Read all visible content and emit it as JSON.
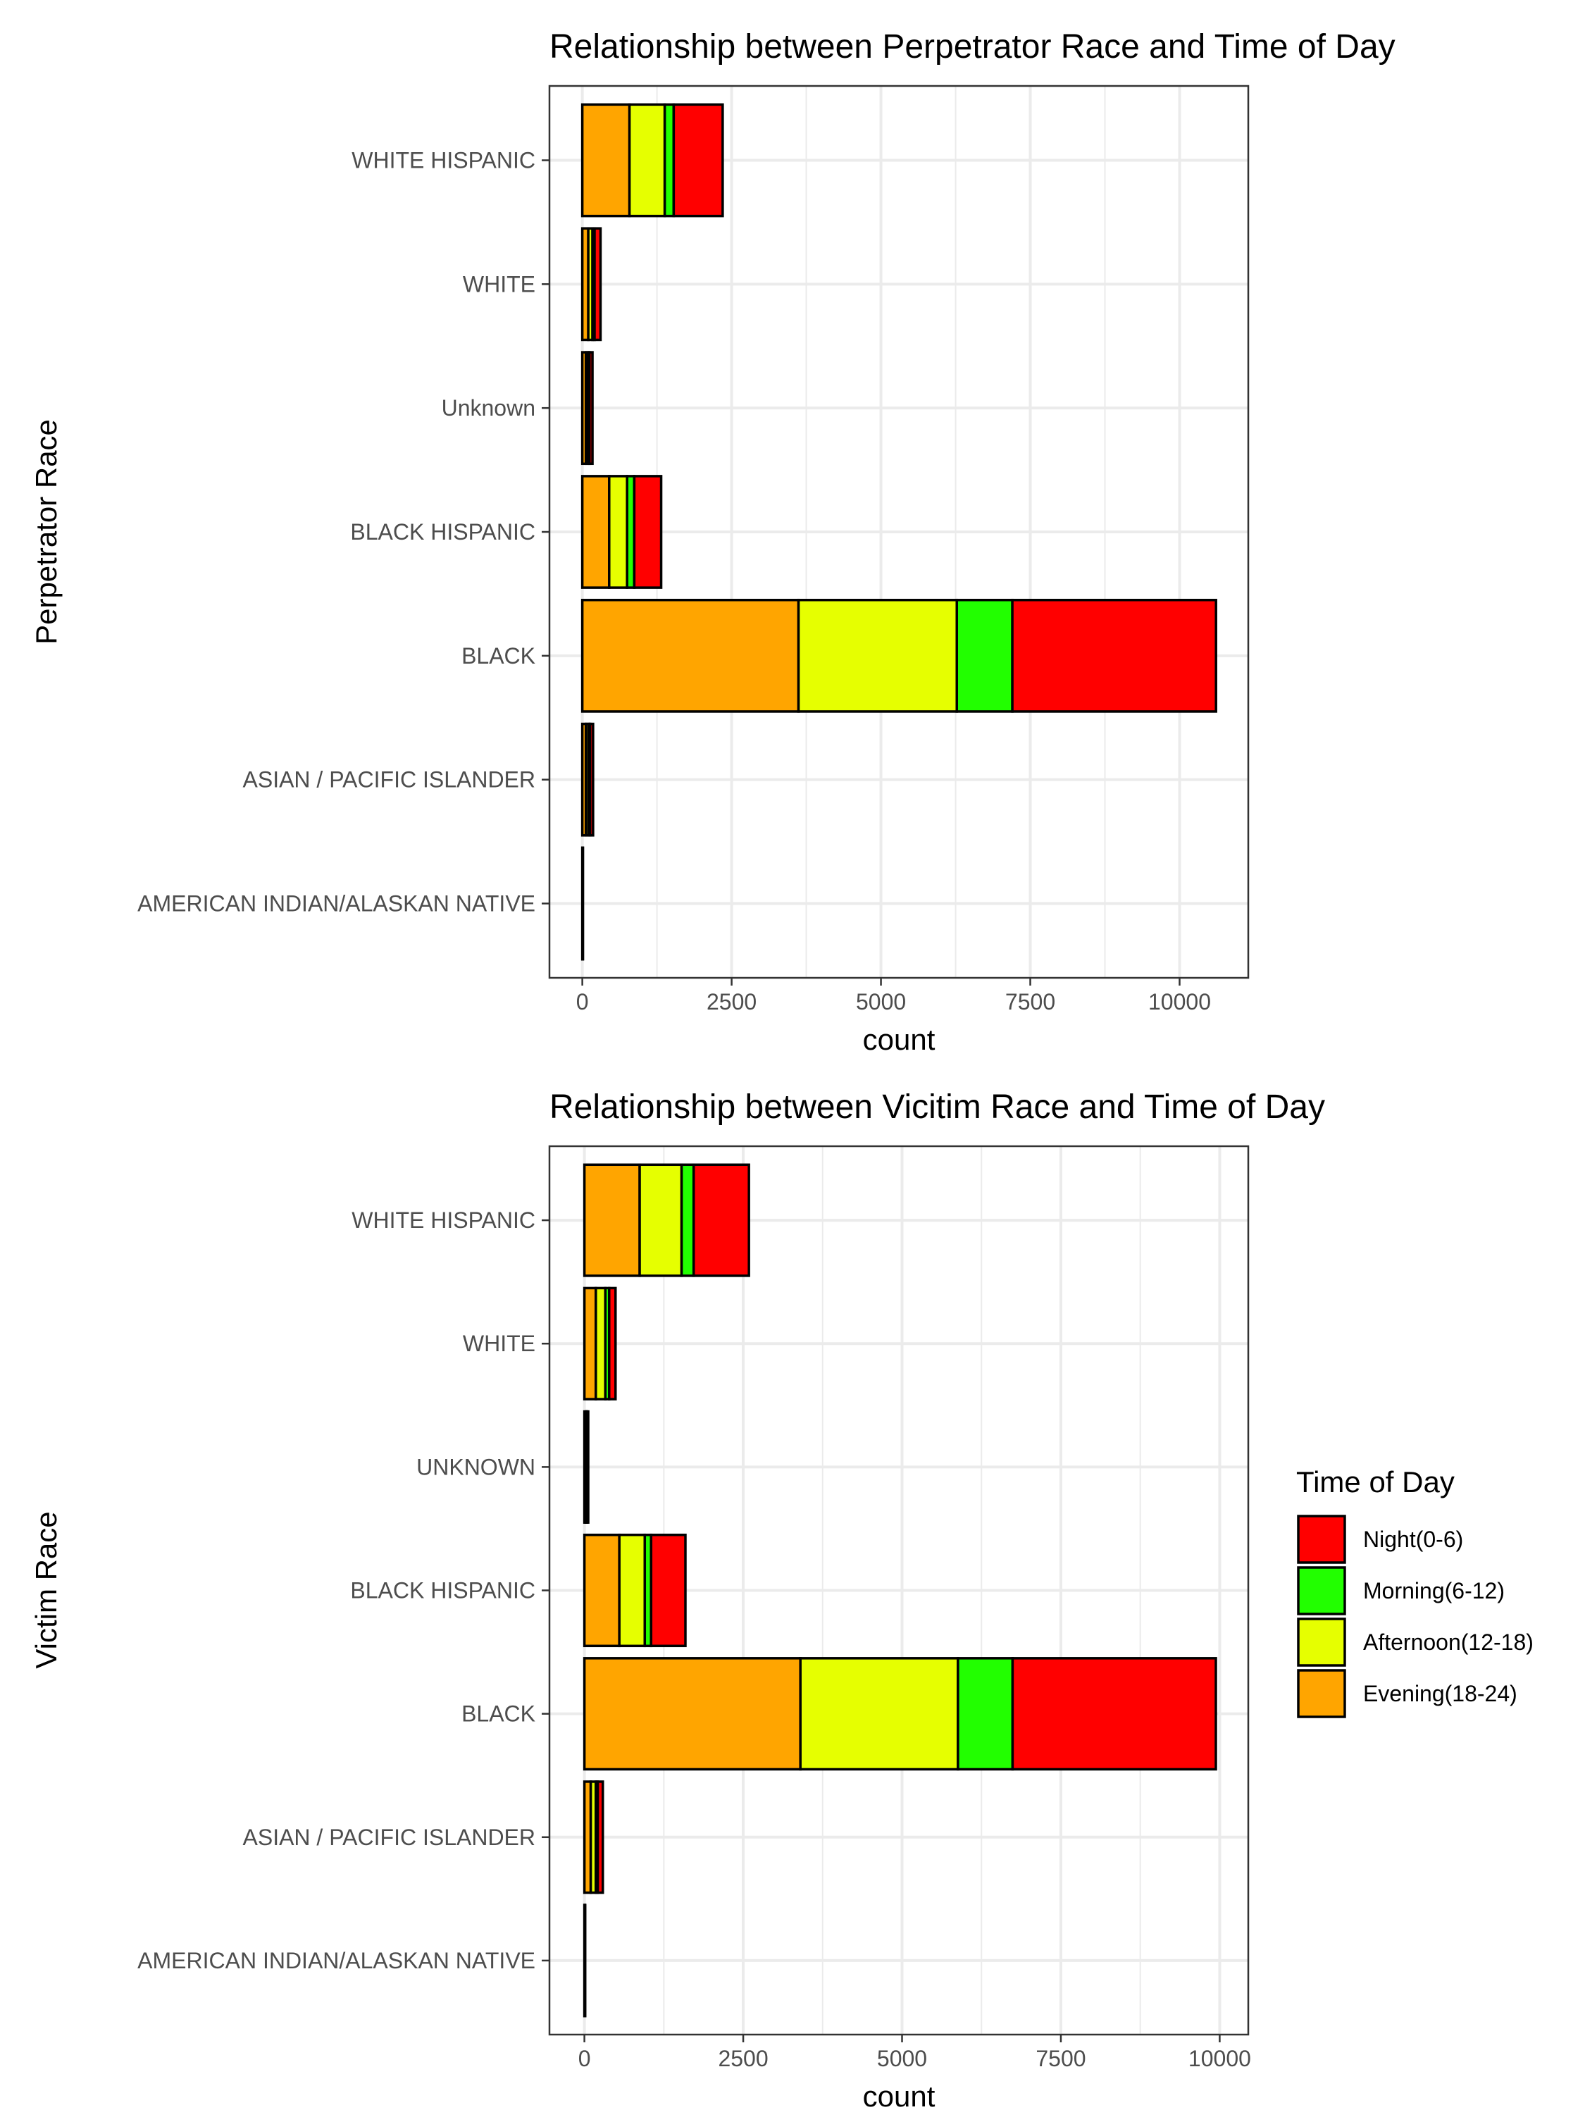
{
  "chart_data": [
    {
      "type": "bar",
      "orientation": "horizontal",
      "stacked": true,
      "title": "Relationship between Perpetrator Race and Time of Day",
      "xlabel": "count",
      "ylabel": "Perpetrator Race",
      "xlim": [
        -550,
        11150
      ],
      "xticks": [
        0,
        2500,
        5000,
        7500,
        10000
      ],
      "grid": true,
      "categories": [
        "AMERICAN INDIAN/ALASKAN NATIVE",
        "ASIAN / PACIFIC ISLANDER",
        "BLACK",
        "BLACK HISPANIC",
        "Unknown",
        "WHITE",
        "WHITE HISPANIC"
      ],
      "series": [
        {
          "name": "Evening(18-24)",
          "values": [
            2,
            60,
            3620,
            450,
            60,
            100,
            790
          ]
        },
        {
          "name": "Afternoon(12-18)",
          "values": [
            1,
            45,
            2650,
            300,
            40,
            70,
            590
          ]
        },
        {
          "name": "Morning(6-12)",
          "values": [
            1,
            25,
            930,
            120,
            20,
            35,
            150
          ]
        },
        {
          "name": "Night(0-6)",
          "values": [
            2,
            50,
            3410,
            450,
            50,
            100,
            820
          ]
        }
      ]
    },
    {
      "type": "bar",
      "orientation": "horizontal",
      "stacked": true,
      "title": "Relationship between Vicitim Race and Time of Day",
      "xlabel": "count",
      "ylabel": "Victim Race",
      "xlim": [
        -550,
        10450
      ],
      "xticks": [
        0,
        2500,
        5000,
        7500,
        10000
      ],
      "grid": true,
      "categories": [
        "AMERICAN INDIAN/ALASKAN NATIVE",
        "ASIAN / PACIFIC ISLANDER",
        "BLACK",
        "BLACK HISPANIC",
        "UNKNOWN",
        "WHITE",
        "WHITE HISPANIC"
      ],
      "series": [
        {
          "name": "Evening(18-24)",
          "values": [
            3,
            100,
            3400,
            550,
            20,
            180,
            870
          ]
        },
        {
          "name": "Afternoon(12-18)",
          "values": [
            2,
            80,
            2480,
            400,
            15,
            150,
            660
          ]
        },
        {
          "name": "Morning(6-12)",
          "values": [
            1,
            30,
            860,
            100,
            5,
            60,
            190
          ]
        },
        {
          "name": "Night(0-6)",
          "values": [
            2,
            80,
            3200,
            540,
            20,
            100,
            870
          ]
        }
      ]
    }
  ],
  "legend": {
    "title": "Time of Day",
    "placement": "right",
    "entries": [
      {
        "label": "Night(0-6)",
        "color": "#ff0000"
      },
      {
        "label": "Morning(6-12)",
        "color": "#22ff00"
      },
      {
        "label": "Afternoon(12-18)",
        "color": "#e6ff00"
      },
      {
        "label": "Evening(18-24)",
        "color": "#ffa500"
      }
    ]
  },
  "colors": {
    "Evening(18-24)": "#ffa500",
    "Afternoon(12-18)": "#e6ff00",
    "Morning(6-12)": "#22ff00",
    "Night(0-6)": "#ff0000",
    "grid": "#ebebeb",
    "bar_outline": "#000000"
  }
}
